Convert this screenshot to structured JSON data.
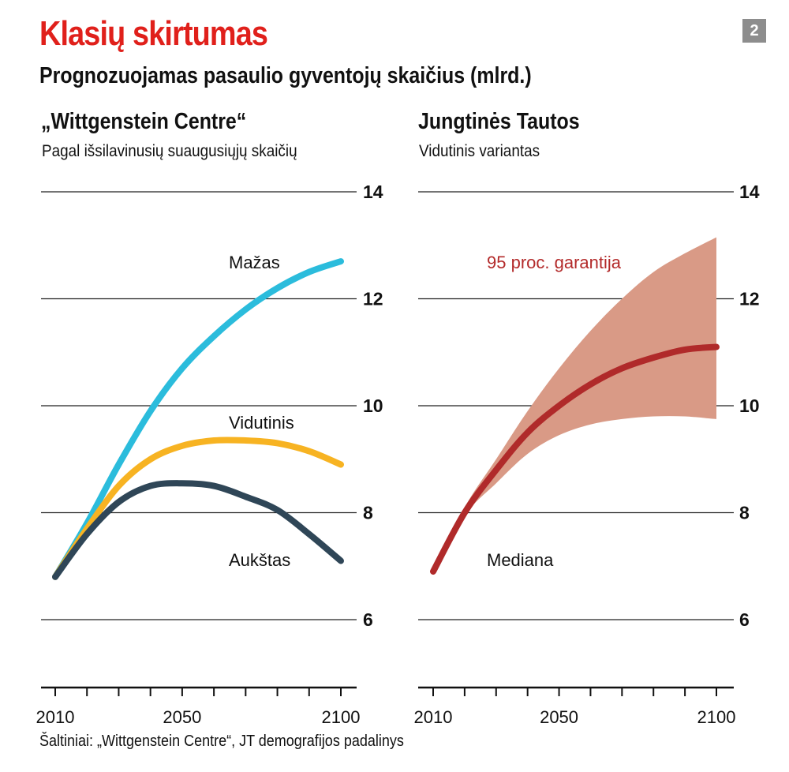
{
  "header": {
    "title": "Klasių skirtumas",
    "subtitle": "Prognozuojamas pasaulio gyventojų skaičius (mlrd.)",
    "badge": "2"
  },
  "source": "Šaltiniai: „Wittgenstein Centre“, JT demografijos padalinys",
  "colors": {
    "grid": "#222222",
    "mazas": "#2bbcdc",
    "vidutinis": "#f7b322",
    "aukstas": "#2f4657",
    "median": "#b02a2a",
    "band": "#d99a86"
  },
  "chart_data": [
    {
      "type": "line",
      "title": "„Wittgenstein Centre“",
      "subtitle": "Pagal išsilavinusių suaugusiųjų skaičių",
      "ylim": [
        4.6,
        14
      ],
      "yticks": [
        6,
        8,
        10,
        12,
        14
      ],
      "xlim": [
        2010,
        2100
      ],
      "xticks": [
        2010,
        2050,
        2100
      ],
      "series": [
        {
          "name": "Mažas",
          "color_key": "mazas",
          "points": [
            [
              2010,
              6.8
            ],
            [
              2020,
              7.8
            ],
            [
              2030,
              8.9
            ],
            [
              2040,
              9.9
            ],
            [
              2050,
              10.7
            ],
            [
              2060,
              11.3
            ],
            [
              2070,
              11.8
            ],
            [
              2080,
              12.2
            ],
            [
              2090,
              12.5
            ],
            [
              2100,
              12.7
            ]
          ]
        },
        {
          "name": "Vidutinis",
          "color_key": "vidutinis",
          "points": [
            [
              2010,
              6.8
            ],
            [
              2020,
              7.7
            ],
            [
              2030,
              8.5
            ],
            [
              2040,
              9.0
            ],
            [
              2050,
              9.25
            ],
            [
              2060,
              9.35
            ],
            [
              2070,
              9.35
            ],
            [
              2080,
              9.3
            ],
            [
              2090,
              9.15
            ],
            [
              2100,
              8.9
            ]
          ]
        },
        {
          "name": "Aukštas",
          "color_key": "aukstas",
          "points": [
            [
              2010,
              6.8
            ],
            [
              2020,
              7.6
            ],
            [
              2030,
              8.2
            ],
            [
              2040,
              8.5
            ],
            [
              2050,
              8.55
            ],
            [
              2060,
              8.5
            ],
            [
              2070,
              8.3
            ],
            [
              2080,
              8.05
            ],
            [
              2090,
              7.6
            ],
            [
              2100,
              7.1
            ]
          ]
        }
      ]
    },
    {
      "type": "area",
      "title": "Jungtinės Tautos",
      "subtitle": "Vidutinis variantas",
      "ylim": [
        4.6,
        14
      ],
      "yticks": [
        6,
        8,
        10,
        12,
        14
      ],
      "xlim": [
        2010,
        2100
      ],
      "xticks": [
        2010,
        2050,
        2100
      ],
      "band": {
        "name": "95 proc. garantija",
        "upper": [
          [
            2020,
            8.1
          ],
          [
            2030,
            9.0
          ],
          [
            2040,
            9.9
          ],
          [
            2050,
            10.7
          ],
          [
            2060,
            11.4
          ],
          [
            2070,
            12.0
          ],
          [
            2080,
            12.5
          ],
          [
            2090,
            12.85
          ],
          [
            2100,
            13.15
          ]
        ],
        "lower": [
          [
            2020,
            7.95
          ],
          [
            2030,
            8.55
          ],
          [
            2040,
            9.1
          ],
          [
            2050,
            9.45
          ],
          [
            2060,
            9.65
          ],
          [
            2070,
            9.75
          ],
          [
            2080,
            9.8
          ],
          [
            2090,
            9.8
          ],
          [
            2100,
            9.75
          ]
        ]
      },
      "series": [
        {
          "name": "Mediana",
          "color_key": "median",
          "points": [
            [
              2010,
              6.9
            ],
            [
              2020,
              8.0
            ],
            [
              2030,
              8.8
            ],
            [
              2040,
              9.5
            ],
            [
              2050,
              10.0
            ],
            [
              2060,
              10.4
            ],
            [
              2070,
              10.7
            ],
            [
              2080,
              10.9
            ],
            [
              2090,
              11.05
            ],
            [
              2100,
              11.1
            ]
          ]
        }
      ]
    }
  ]
}
